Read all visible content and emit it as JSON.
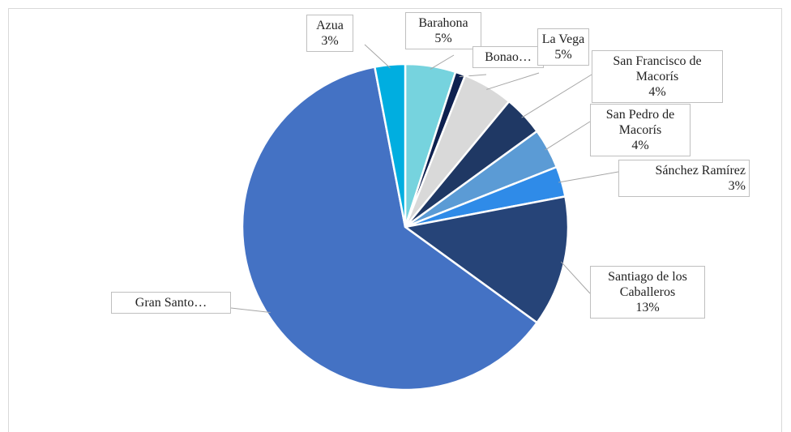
{
  "chart_data": {
    "type": "pie",
    "categories": [
      "Barahona",
      "Bonao…",
      "La Vega",
      "San Francisco de Macorís",
      "San Pedro de Macorís",
      "Sánchez Ramírez",
      "Santiago de los Caballeros",
      "Gran Santo…",
      "Azua"
    ],
    "values": [
      5,
      1,
      5,
      4,
      4,
      3,
      13,
      62,
      3
    ],
    "value_labels": [
      "5%",
      null,
      "5%",
      "4%",
      "4%",
      "3%",
      "13%",
      null,
      "3%"
    ],
    "colors": [
      "#76d3de",
      "#0e2150",
      "#d9d9d9",
      "#1f3864",
      "#5b9bd5",
      "#2f8be8",
      "#264478",
      "#4472c4",
      "#00aee0"
    ]
  }
}
